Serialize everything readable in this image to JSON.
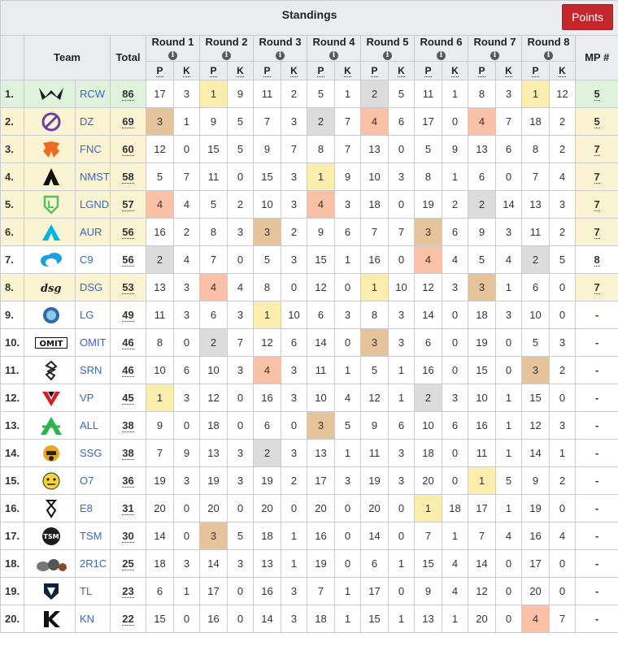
{
  "header": {
    "standings_label": "Standings",
    "points_button": "Points",
    "team_label": "Team",
    "total_label": "Total",
    "mp_label": "MP #",
    "p_label": "P",
    "k_label": "K",
    "info_glyph": "i",
    "rounds": [
      "Round 1",
      "Round 2",
      "Round 3",
      "Round 4",
      "Round 5",
      "Round 6",
      "Round 7",
      "Round 8"
    ]
  },
  "colors": {
    "gold": "#fbedae",
    "silver": "#dcdcdc",
    "bronze": "#e5c49b",
    "highlight": "#fbc1a7",
    "qualified": "#fbf4d3",
    "leader": "#dff2dc",
    "points_button": "#c3272b",
    "team_link": "#3366cc"
  },
  "teams": [
    {
      "pos": "1.",
      "name": "RCW",
      "logo": "rcw-logo",
      "total": "86",
      "mp": "5",
      "status": "leader",
      "rounds": [
        [
          "17",
          "3",
          ""
        ],
        [
          "1",
          "9",
          "gold"
        ],
        [
          "11",
          "2",
          ""
        ],
        [
          "5",
          "1",
          ""
        ],
        [
          "2",
          "5",
          "silver"
        ],
        [
          "11",
          "1",
          ""
        ],
        [
          "8",
          "3",
          ""
        ],
        [
          "1",
          "12",
          "gold"
        ]
      ]
    },
    {
      "pos": "2.",
      "name": "DZ",
      "logo": "dz-logo",
      "total": "69",
      "mp": "5",
      "status": "qualified",
      "rounds": [
        [
          "3",
          "1",
          "bronze"
        ],
        [
          "9",
          "5",
          ""
        ],
        [
          "7",
          "3",
          ""
        ],
        [
          "2",
          "7",
          "silver"
        ],
        [
          "4",
          "6",
          "top"
        ],
        [
          "17",
          "0",
          ""
        ],
        [
          "4",
          "7",
          "top"
        ],
        [
          "18",
          "2",
          ""
        ]
      ]
    },
    {
      "pos": "3.",
      "name": "FNC",
      "logo": "fnc-logo",
      "total": "60",
      "mp": "7",
      "status": "qualified",
      "rounds": [
        [
          "12",
          "0",
          ""
        ],
        [
          "15",
          "5",
          ""
        ],
        [
          "9",
          "7",
          ""
        ],
        [
          "8",
          "7",
          ""
        ],
        [
          "13",
          "0",
          ""
        ],
        [
          "5",
          "9",
          ""
        ],
        [
          "13",
          "6",
          ""
        ],
        [
          "8",
          "2",
          ""
        ]
      ]
    },
    {
      "pos": "4.",
      "name": "NMST",
      "logo": "nmst-logo",
      "total": "58",
      "mp": "7",
      "status": "qualified",
      "rounds": [
        [
          "5",
          "7",
          ""
        ],
        [
          "11",
          "0",
          ""
        ],
        [
          "15",
          "3",
          ""
        ],
        [
          "1",
          "9",
          "gold"
        ],
        [
          "10",
          "3",
          ""
        ],
        [
          "8",
          "1",
          ""
        ],
        [
          "6",
          "0",
          ""
        ],
        [
          "7",
          "4",
          ""
        ]
      ]
    },
    {
      "pos": "5.",
      "name": "LGND",
      "logo": "lgnd-logo",
      "total": "57",
      "mp": "7",
      "status": "qualified",
      "rounds": [
        [
          "4",
          "4",
          "top"
        ],
        [
          "5",
          "2",
          ""
        ],
        [
          "10",
          "3",
          ""
        ],
        [
          "4",
          "3",
          "top"
        ],
        [
          "18",
          "0",
          ""
        ],
        [
          "19",
          "2",
          ""
        ],
        [
          "2",
          "14",
          "silver"
        ],
        [
          "13",
          "3",
          ""
        ]
      ]
    },
    {
      "pos": "6.",
      "name": "AUR",
      "logo": "aur-logo",
      "total": "56",
      "mp": "7",
      "status": "qualified",
      "rounds": [
        [
          "16",
          "2",
          ""
        ],
        [
          "8",
          "3",
          ""
        ],
        [
          "3",
          "2",
          "bronze"
        ],
        [
          "9",
          "6",
          ""
        ],
        [
          "7",
          "7",
          ""
        ],
        [
          "3",
          "6",
          "bronze"
        ],
        [
          "9",
          "3",
          ""
        ],
        [
          "11",
          "2",
          ""
        ]
      ]
    },
    {
      "pos": "7.",
      "name": "C9",
      "logo": "c9-logo",
      "total": "56",
      "mp": "8",
      "status": "",
      "rounds": [
        [
          "2",
          "4",
          "silver"
        ],
        [
          "7",
          "0",
          ""
        ],
        [
          "5",
          "3",
          ""
        ],
        [
          "15",
          "1",
          ""
        ],
        [
          "16",
          "0",
          ""
        ],
        [
          "4",
          "4",
          "top"
        ],
        [
          "5",
          "4",
          ""
        ],
        [
          "2",
          "5",
          "silver"
        ]
      ]
    },
    {
      "pos": "8.",
      "name": "DSG",
      "logo": "dsg-logo",
      "total": "53",
      "mp": "7",
      "status": "qualified",
      "rounds": [
        [
          "13",
          "3",
          ""
        ],
        [
          "4",
          "4",
          "top"
        ],
        [
          "8",
          "0",
          ""
        ],
        [
          "12",
          "0",
          ""
        ],
        [
          "1",
          "10",
          "gold"
        ],
        [
          "12",
          "3",
          ""
        ],
        [
          "3",
          "1",
          "bronze"
        ],
        [
          "6",
          "0",
          ""
        ]
      ]
    },
    {
      "pos": "9.",
      "name": "LG",
      "logo": "lg-logo",
      "total": "49",
      "mp": "-",
      "status": "",
      "rounds": [
        [
          "11",
          "3",
          ""
        ],
        [
          "6",
          "3",
          ""
        ],
        [
          "1",
          "10",
          "gold"
        ],
        [
          "6",
          "3",
          ""
        ],
        [
          "8",
          "3",
          ""
        ],
        [
          "14",
          "0",
          ""
        ],
        [
          "18",
          "3",
          ""
        ],
        [
          "10",
          "0",
          ""
        ]
      ]
    },
    {
      "pos": "10.",
      "name": "OMIT",
      "logo": "omit-logo",
      "total": "46",
      "mp": "-",
      "status": "",
      "rounds": [
        [
          "8",
          "0",
          ""
        ],
        [
          "2",
          "7",
          "silver"
        ],
        [
          "12",
          "6",
          ""
        ],
        [
          "14",
          "0",
          ""
        ],
        [
          "3",
          "3",
          "bronze"
        ],
        [
          "6",
          "0",
          ""
        ],
        [
          "19",
          "0",
          ""
        ],
        [
          "5",
          "3",
          ""
        ]
      ]
    },
    {
      "pos": "11.",
      "name": "SRN",
      "logo": "srn-logo",
      "total": "46",
      "mp": "-",
      "status": "",
      "rounds": [
        [
          "10",
          "6",
          ""
        ],
        [
          "10",
          "3",
          ""
        ],
        [
          "4",
          "3",
          "top"
        ],
        [
          "11",
          "1",
          ""
        ],
        [
          "5",
          "1",
          ""
        ],
        [
          "16",
          "0",
          ""
        ],
        [
          "15",
          "0",
          ""
        ],
        [
          "3",
          "2",
          "bronze"
        ]
      ]
    },
    {
      "pos": "12.",
      "name": "VP",
      "logo": "vp-logo",
      "total": "45",
      "mp": "-",
      "status": "",
      "rounds": [
        [
          "1",
          "3",
          "gold"
        ],
        [
          "12",
          "0",
          ""
        ],
        [
          "16",
          "3",
          ""
        ],
        [
          "10",
          "4",
          ""
        ],
        [
          "12",
          "1",
          ""
        ],
        [
          "2",
          "3",
          "silver"
        ],
        [
          "10",
          "1",
          ""
        ],
        [
          "15",
          "0",
          ""
        ]
      ]
    },
    {
      "pos": "13.",
      "name": "ALL",
      "logo": "all-logo",
      "total": "38",
      "mp": "-",
      "status": "",
      "rounds": [
        [
          "9",
          "0",
          ""
        ],
        [
          "18",
          "0",
          ""
        ],
        [
          "6",
          "0",
          ""
        ],
        [
          "3",
          "5",
          "bronze"
        ],
        [
          "9",
          "6",
          ""
        ],
        [
          "10",
          "6",
          ""
        ],
        [
          "16",
          "1",
          ""
        ],
        [
          "12",
          "3",
          ""
        ]
      ]
    },
    {
      "pos": "14.",
      "name": "SSG",
      "logo": "ssg-logo",
      "total": "38",
      "mp": "-",
      "status": "",
      "rounds": [
        [
          "7",
          "9",
          ""
        ],
        [
          "13",
          "3",
          ""
        ],
        [
          "2",
          "3",
          "silver"
        ],
        [
          "13",
          "1",
          ""
        ],
        [
          "11",
          "3",
          ""
        ],
        [
          "18",
          "0",
          ""
        ],
        [
          "11",
          "1",
          ""
        ],
        [
          "14",
          "1",
          ""
        ]
      ]
    },
    {
      "pos": "15.",
      "name": "O7",
      "logo": "o7-logo",
      "total": "36",
      "mp": "-",
      "status": "",
      "rounds": [
        [
          "19",
          "3",
          ""
        ],
        [
          "19",
          "3",
          ""
        ],
        [
          "19",
          "2",
          ""
        ],
        [
          "17",
          "3",
          ""
        ],
        [
          "19",
          "3",
          ""
        ],
        [
          "20",
          "0",
          ""
        ],
        [
          "1",
          "5",
          "gold"
        ],
        [
          "9",
          "2",
          ""
        ]
      ]
    },
    {
      "pos": "16.",
      "name": "E8",
      "logo": "e8-logo",
      "total": "31",
      "mp": "-",
      "status": "",
      "rounds": [
        [
          "20",
          "0",
          ""
        ],
        [
          "20",
          "0",
          ""
        ],
        [
          "20",
          "0",
          ""
        ],
        [
          "20",
          "0",
          ""
        ],
        [
          "20",
          "0",
          ""
        ],
        [
          "1",
          "18",
          "gold"
        ],
        [
          "17",
          "1",
          ""
        ],
        [
          "19",
          "0",
          ""
        ]
      ]
    },
    {
      "pos": "17.",
      "name": "TSM",
      "logo": "tsm-logo",
      "total": "30",
      "mp": "-",
      "status": "",
      "rounds": [
        [
          "14",
          "0",
          ""
        ],
        [
          "3",
          "5",
          "bronze"
        ],
        [
          "18",
          "1",
          ""
        ],
        [
          "16",
          "0",
          ""
        ],
        [
          "14",
          "0",
          ""
        ],
        [
          "7",
          "1",
          ""
        ],
        [
          "7",
          "4",
          ""
        ],
        [
          "16",
          "4",
          ""
        ]
      ]
    },
    {
      "pos": "18.",
      "name": "2R1C",
      "logo": "2r1c-logo",
      "total": "25",
      "mp": "-",
      "status": "",
      "rounds": [
        [
          "18",
          "3",
          ""
        ],
        [
          "14",
          "3",
          ""
        ],
        [
          "13",
          "1",
          ""
        ],
        [
          "19",
          "0",
          ""
        ],
        [
          "6",
          "1",
          ""
        ],
        [
          "15",
          "4",
          ""
        ],
        [
          "14",
          "0",
          ""
        ],
        [
          "17",
          "0",
          ""
        ]
      ]
    },
    {
      "pos": "19.",
      "name": "TL",
      "logo": "tl-logo",
      "total": "23",
      "mp": "-",
      "status": "",
      "rounds": [
        [
          "6",
          "1",
          ""
        ],
        [
          "17",
          "0",
          ""
        ],
        [
          "16",
          "3",
          ""
        ],
        [
          "7",
          "1",
          ""
        ],
        [
          "17",
          "0",
          ""
        ],
        [
          "9",
          "4",
          ""
        ],
        [
          "12",
          "0",
          ""
        ],
        [
          "20",
          "0",
          ""
        ]
      ]
    },
    {
      "pos": "20.",
      "name": "KN",
      "logo": "kn-logo",
      "total": "22",
      "mp": "-",
      "status": "",
      "rounds": [
        [
          "15",
          "0",
          ""
        ],
        [
          "16",
          "0",
          ""
        ],
        [
          "14",
          "3",
          ""
        ],
        [
          "18",
          "1",
          ""
        ],
        [
          "15",
          "1",
          ""
        ],
        [
          "13",
          "1",
          ""
        ],
        [
          "20",
          "0",
          ""
        ],
        [
          "4",
          "7",
          "top"
        ]
      ]
    }
  ]
}
